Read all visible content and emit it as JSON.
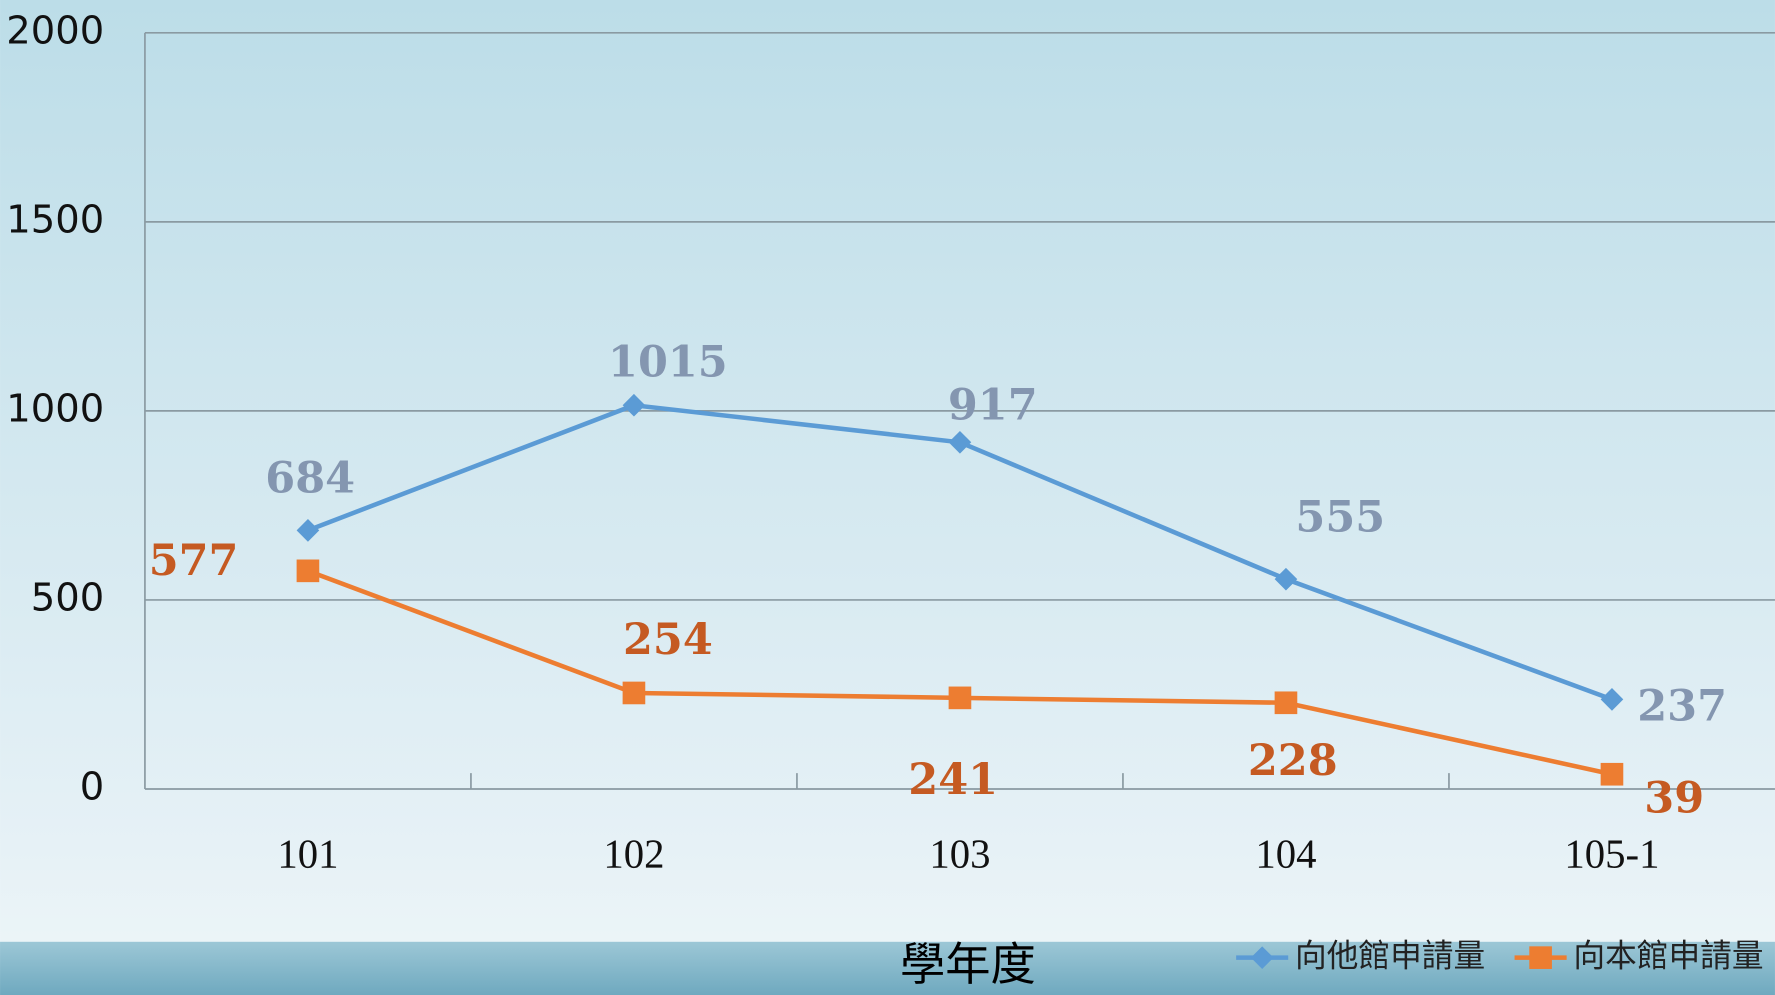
{
  "chart_data": {
    "type": "line",
    "x_label": "學年度",
    "categories": [
      "101",
      "102",
      "103",
      "104",
      "105-1"
    ],
    "series": [
      {
        "name": "向他館申請量",
        "color": "#5b9bd5",
        "marker": "diamond",
        "values": [
          684,
          1015,
          917,
          555,
          237
        ]
      },
      {
        "name": "向本館申請量",
        "color": "#ed7d31",
        "marker": "square",
        "values": [
          577,
          254,
          241,
          228,
          39
        ]
      }
    ],
    "ylim": [
      0,
      2000
    ],
    "yticks": [
      0,
      500,
      1000,
      1500,
      2000
    ],
    "grid": true,
    "legend": "bottom-right"
  }
}
